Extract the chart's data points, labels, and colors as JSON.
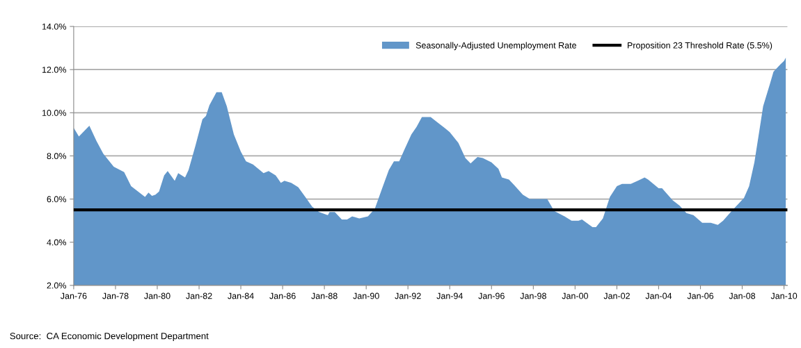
{
  "chart_data": {
    "type": "area",
    "x": [
      "1976-01",
      "1976-04",
      "1976-10",
      "1977-02",
      "1977-06",
      "1977-12",
      "1978-06",
      "1978-10",
      "1979-06",
      "1979-08",
      "1979-10",
      "1979-12",
      "1980-02",
      "1980-05",
      "1980-07",
      "1980-11",
      "1981-01",
      "1981-05",
      "1981-07",
      "1981-11",
      "1982-03",
      "1982-05",
      "1982-07",
      "1982-11",
      "1983-02",
      "1983-05",
      "1983-09",
      "1984-01",
      "1984-04",
      "1984-08",
      "1985-02",
      "1985-05",
      "1985-09",
      "1985-12",
      "1986-02",
      "1986-06",
      "1986-10",
      "1987-02",
      "1987-06",
      "1987-10",
      "1988-03",
      "1988-04",
      "1988-07",
      "1988-11",
      "1989-02",
      "1989-05",
      "1989-09",
      "1990-02",
      "1990-06",
      "1990-10",
      "1991-02",
      "1991-05",
      "1991-08",
      "1991-11",
      "1992-03",
      "1992-06",
      "1992-09",
      "1993-02",
      "1993-06",
      "1993-10",
      "1994-01",
      "1994-06",
      "1994-10",
      "1995-01",
      "1995-05",
      "1995-08",
      "1996-01",
      "1996-05",
      "1996-07",
      "1996-11",
      "1997-02",
      "1997-07",
      "1997-11",
      "1998-03",
      "1998-09",
      "1999-01",
      "1999-07",
      "1999-11",
      "2000-03",
      "2000-05",
      "2000-11",
      "2001-01",
      "2001-05",
      "2001-09",
      "2002-01",
      "2002-04",
      "2002-09",
      "2003-01",
      "2003-05",
      "2003-07",
      "2004-01",
      "2004-03",
      "2004-09",
      "2005-01",
      "2005-05",
      "2005-09",
      "2006-02",
      "2006-07",
      "2006-11",
      "2007-02",
      "2007-07",
      "2008-02",
      "2008-05",
      "2008-08",
      "2008-11",
      "2009-01",
      "2009-05",
      "2009-07",
      "2009-11",
      "2010-01",
      "2010-02"
    ],
    "series": [
      {
        "name": "Seasonally-Adjusted Unemployment Rate",
        "color": "#6196c9",
        "values": [
          9.3,
          8.9,
          9.4,
          8.7,
          8.1,
          7.5,
          7.25,
          6.6,
          6.1,
          6.3,
          6.15,
          6.2,
          6.35,
          7.1,
          7.3,
          6.85,
          7.2,
          7.0,
          7.35,
          8.5,
          9.7,
          9.85,
          10.35,
          10.95,
          10.95,
          10.3,
          9.0,
          8.2,
          7.75,
          7.6,
          7.2,
          7.3,
          7.1,
          6.75,
          6.85,
          6.75,
          6.55,
          6.1,
          5.65,
          5.4,
          5.25,
          5.4,
          5.4,
          5.05,
          5.05,
          5.2,
          5.1,
          5.2,
          5.55,
          6.45,
          7.35,
          7.75,
          7.75,
          8.3,
          9.0,
          9.35,
          9.8,
          9.8,
          9.55,
          9.3,
          9.1,
          8.6,
          7.9,
          7.65,
          7.95,
          7.9,
          7.7,
          7.4,
          7.0,
          6.9,
          6.65,
          6.2,
          6.0,
          6.0,
          6.0,
          5.45,
          5.2,
          5.0,
          5.0,
          5.05,
          4.7,
          4.7,
          5.1,
          6.1,
          6.6,
          6.7,
          6.7,
          6.85,
          7.0,
          6.9,
          6.5,
          6.5,
          5.95,
          5.7,
          5.35,
          5.25,
          4.9,
          4.9,
          4.8,
          5.0,
          5.45,
          6.05,
          6.6,
          7.7,
          9.25,
          10.3,
          11.35,
          11.9,
          12.25,
          12.4,
          12.55
        ]
      }
    ],
    "ref_lines": [
      {
        "axis": "y",
        "value": 5.5,
        "label": "Proposition 23 Threshold Rate (5.5%)",
        "color": "#000000",
        "line_style": "solid"
      }
    ],
    "ylim": [
      2,
      14
    ],
    "yticks": [
      {
        "value": 2,
        "label": "2.0%"
      },
      {
        "value": 4,
        "label": "4.0%"
      },
      {
        "value": 6,
        "label": "6.0%"
      },
      {
        "value": 8,
        "label": "8.0%"
      },
      {
        "value": 10,
        "label": "10.0%"
      },
      {
        "value": 12,
        "label": "12.0%"
      },
      {
        "value": 14,
        "label": "14.0%"
      }
    ],
    "xlim": [
      "1976-01",
      "2010-03"
    ],
    "xticks": [
      {
        "value": "1976-01",
        "label": "Jan-76"
      },
      {
        "value": "1978-01",
        "label": "Jan-78"
      },
      {
        "value": "1980-01",
        "label": "Jan-80"
      },
      {
        "value": "1982-01",
        "label": "Jan-82"
      },
      {
        "value": "1984-01",
        "label": "Jan-84"
      },
      {
        "value": "1986-01",
        "label": "Jan-86"
      },
      {
        "value": "1988-01",
        "label": "Jan-88"
      },
      {
        "value": "1990-01",
        "label": "Jan-90"
      },
      {
        "value": "1992-01",
        "label": "Jan-92"
      },
      {
        "value": "1994-01",
        "label": "Jan-94"
      },
      {
        "value": "1996-01",
        "label": "Jan-96"
      },
      {
        "value": "1998-01",
        "label": "Jan-98"
      },
      {
        "value": "2000-01",
        "label": "Jan-00"
      },
      {
        "value": "2002-01",
        "label": "Jan-02"
      },
      {
        "value": "2004-01",
        "label": "Jan-04"
      },
      {
        "value": "2006-01",
        "label": "Jan-06"
      },
      {
        "value": "2008-01",
        "label": "Jan-08"
      },
      {
        "value": "2010-01",
        "label": "Jan-10"
      }
    ],
    "grid": "y",
    "legend": "top right",
    "annotations": [
      "Source:  CA Economic Development Department"
    ]
  }
}
